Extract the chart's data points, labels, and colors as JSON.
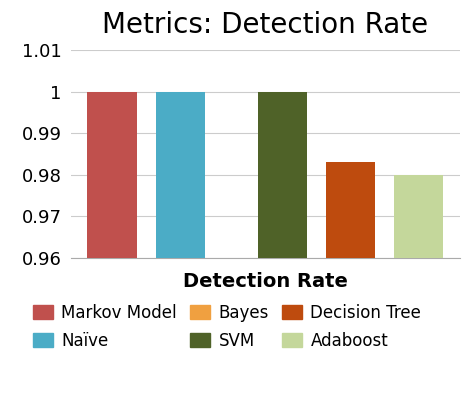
{
  "title": "Metrics: Detection Rate",
  "xlabel": "Detection Rate",
  "bar_labels": [
    "Markov Model",
    "Naïve",
    "SVM",
    "Decision Tree",
    "Adaboost"
  ],
  "values": [
    1.0,
    1.0,
    1.0,
    0.983,
    0.98
  ],
  "bar_colors": [
    "#c0504d",
    "#4bacc6",
    "#4f6228",
    "#be4b0e",
    "#c4d79b"
  ],
  "x_positions": [
    0,
    1,
    2.5,
    3.5,
    4.5
  ],
  "ylim": [
    0.96,
    1.01
  ],
  "yticks": [
    1.01,
    1.0,
    0.99,
    0.98,
    0.97,
    0.96
  ],
  "ytick_labels": [
    "1.01",
    "1",
    "0.99",
    "0.98",
    "0.97",
    "0.96"
  ],
  "legend_entries": [
    {
      "label": "Markov Model",
      "color": "#c0504d"
    },
    {
      "label": "Naïve",
      "color": "#4bacc6"
    },
    {
      "label": "Bayes",
      "color": "#f0a040"
    },
    {
      "label": "SVM",
      "color": "#4f6228"
    },
    {
      "label": "Decision Tree",
      "color": "#be4b0e"
    },
    {
      "label": "Adaboost",
      "color": "#c4d79b"
    }
  ],
  "background_color": "#ffffff",
  "title_fontsize": 20,
  "label_fontsize": 14,
  "tick_fontsize": 13,
  "legend_fontsize": 12,
  "bar_width": 0.72
}
